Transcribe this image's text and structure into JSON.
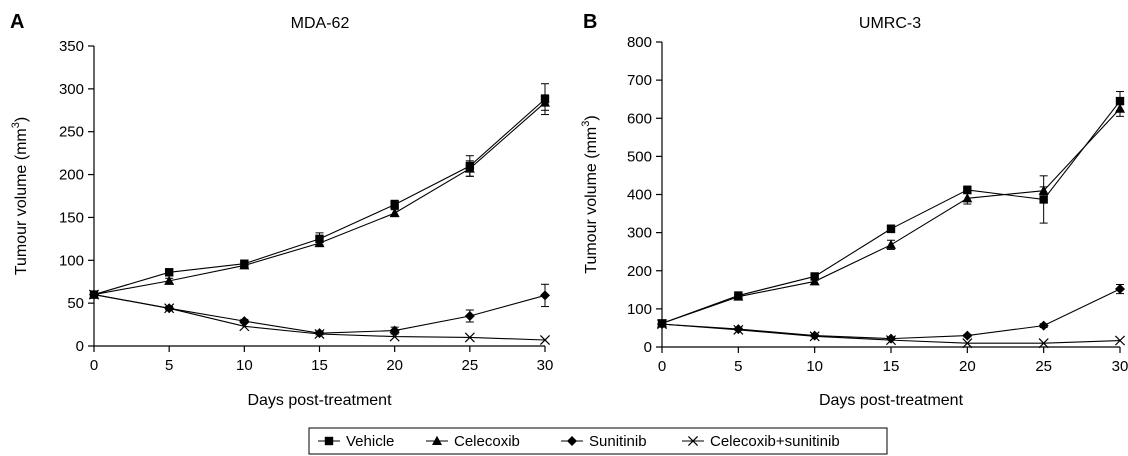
{
  "chart_data": [
    {
      "type": "line",
      "panel_letter": "A",
      "title": "MDA-62",
      "xlabel": "Days post-treatment",
      "ylabel": "Tumour volume (mm3)",
      "ylabel_main": "Tumour volume (mm",
      "ylabel_sup": "3",
      "ylabel_close": ")",
      "x": [
        0,
        5,
        10,
        15,
        20,
        25,
        30
      ],
      "xlim": [
        0,
        30
      ],
      "ylim": [
        0,
        350
      ],
      "xticks": [
        0,
        5,
        10,
        15,
        20,
        25,
        30
      ],
      "yticks": [
        0,
        50,
        100,
        150,
        200,
        250,
        300,
        350
      ],
      "series": [
        {
          "name": "Vehicle",
          "values": [
            60,
            86,
            96,
            125,
            165,
            210,
            288
          ],
          "errors": [
            2,
            4,
            3,
            7,
            5,
            12,
            18
          ]
        },
        {
          "name": "Celecoxib",
          "values": [
            60,
            76,
            94,
            120,
            155,
            207,
            284
          ],
          "errors": [
            2,
            3,
            3,
            4,
            4,
            9,
            9
          ]
        },
        {
          "name": "Sunitinib",
          "values": [
            60,
            44,
            29,
            15,
            18,
            35,
            59
          ],
          "errors": [
            2,
            2,
            2,
            2,
            4,
            7,
            13
          ]
        },
        {
          "name": "Celecoxib+sunitinib",
          "values": [
            60,
            44,
            23,
            14,
            11,
            10,
            7
          ],
          "errors": [
            0,
            0,
            0,
            0,
            0,
            0,
            0
          ]
        }
      ]
    },
    {
      "type": "line",
      "panel_letter": "B",
      "title": "UMRC-3",
      "xlabel": "Days post-treatment",
      "ylabel": "Tumour volume (mm3)",
      "ylabel_main": "Tumour volume (mm",
      "ylabel_sup": "3",
      "ylabel_close": ")",
      "x": [
        0,
        5,
        10,
        15,
        20,
        25,
        30
      ],
      "xlim": [
        0,
        30
      ],
      "ylim": [
        0,
        800
      ],
      "xticks": [
        0,
        5,
        10,
        15,
        20,
        25,
        30
      ],
      "yticks": [
        0,
        100,
        200,
        300,
        400,
        500,
        600,
        700,
        800
      ],
      "series": [
        {
          "name": "Vehicle",
          "values": [
            62,
            135,
            185,
            310,
            412,
            387,
            645
          ],
          "errors": [
            3,
            6,
            8,
            10,
            10,
            62,
            25
          ]
        },
        {
          "name": "Celecoxib",
          "values": [
            62,
            132,
            172,
            268,
            390,
            410,
            625
          ],
          "errors": [
            3,
            5,
            8,
            12,
            15,
            10,
            20
          ]
        },
        {
          "name": "Sunitinib",
          "values": [
            60,
            47,
            30,
            22,
            30,
            56,
            152
          ],
          "errors": [
            2,
            3,
            3,
            3,
            3,
            5,
            12
          ]
        },
        {
          "name": "Celecoxib+sunitinib",
          "values": [
            60,
            45,
            28,
            18,
            10,
            10,
            17
          ],
          "errors": [
            0,
            0,
            0,
            0,
            0,
            0,
            0
          ]
        }
      ]
    }
  ],
  "legend": {
    "position": "bottom-center",
    "items": [
      {
        "label": "Vehicle",
        "marker": "square"
      },
      {
        "label": "Celecoxib",
        "marker": "triangle"
      },
      {
        "label": "Sunitinib",
        "marker": "diamond"
      },
      {
        "label": "Celecoxib+sunitinib",
        "marker": "x"
      }
    ]
  }
}
